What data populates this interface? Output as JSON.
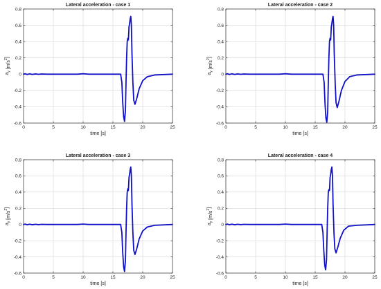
{
  "chart_data": [
    {
      "type": "line",
      "title": "Lateral acceleration - case 1",
      "xlabel": "time [s]",
      "ylabel_base": "a",
      "ylabel_sub": "y",
      "ylabel_unit": "[m/s",
      "ylabel_sup": "2",
      "ylabel_close": "]",
      "xlim": [
        0,
        25
      ],
      "ylim": [
        -0.6,
        0.8
      ],
      "xticks": [
        0,
        5,
        10,
        15,
        20,
        25
      ],
      "yticks": [
        -0.6,
        -0.4,
        -0.2,
        0,
        0.2,
        0.4,
        0.6,
        0.8
      ],
      "grid": true,
      "series_color": "#1010c8",
      "series": [
        {
          "x": [
            0,
            0.3,
            0.6,
            1.0,
            1.5,
            2.0,
            2.5,
            3.0,
            4.0,
            6.0,
            9.0,
            10.0,
            11.0,
            13.0,
            15.0,
            16.3,
            16.5,
            16.65,
            16.8,
            16.95,
            17.1,
            17.2,
            17.3,
            17.4,
            17.5,
            17.6,
            17.7,
            17.8,
            17.9,
            18.0,
            18.1,
            18.2,
            18.35,
            18.5,
            18.7,
            19.0,
            19.4,
            20.0,
            20.8,
            22.0,
            25.0
          ],
          "y": [
            0,
            0.005,
            -0.004,
            0.004,
            -0.003,
            0.003,
            -0.002,
            0.002,
            0.0,
            0.0,
            0.0,
            0.005,
            0.0,
            0.0,
            0.0,
            0.0,
            -0.1,
            -0.35,
            -0.52,
            -0.58,
            -0.45,
            -0.1,
            0.2,
            0.4,
            0.44,
            0.42,
            0.58,
            0.62,
            0.68,
            0.71,
            0.6,
            0.25,
            -0.1,
            -0.32,
            -0.37,
            -0.3,
            -0.18,
            -0.08,
            -0.03,
            -0.01,
            0.0
          ]
        }
      ]
    },
    {
      "type": "line",
      "title": "Lateral acceleration - case 2",
      "xlabel": "time [s]",
      "ylabel_base": "a",
      "ylabel_sub": "y",
      "ylabel_unit": "[m/s",
      "ylabel_sup": "2",
      "ylabel_close": "]",
      "xlim": [
        0,
        25
      ],
      "ylim": [
        -0.6,
        0.8
      ],
      "xticks": [
        0,
        5,
        10,
        15,
        20,
        25
      ],
      "yticks": [
        -0.6,
        -0.4,
        -0.2,
        0,
        0.2,
        0.4,
        0.6,
        0.8
      ],
      "grid": true,
      "series_color": "#1010c8",
      "series": [
        {
          "x": [
            0,
            0.3,
            0.6,
            1.0,
            1.5,
            2.0,
            2.5,
            3.0,
            4.0,
            6.0,
            9.0,
            10.0,
            11.0,
            13.0,
            15.0,
            16.3,
            16.5,
            16.65,
            16.8,
            16.95,
            17.1,
            17.2,
            17.3,
            17.4,
            17.5,
            17.6,
            17.7,
            17.8,
            17.9,
            18.0,
            18.1,
            18.2,
            18.35,
            18.5,
            18.7,
            19.0,
            19.4,
            20.0,
            20.8,
            22.0,
            25.0
          ],
          "y": [
            0,
            0.005,
            -0.004,
            0.004,
            -0.003,
            0.003,
            -0.002,
            0.002,
            0.0,
            0.0,
            0.0,
            0.005,
            0.0,
            0.0,
            0.0,
            0.0,
            -0.1,
            -0.36,
            -0.54,
            -0.59,
            -0.46,
            -0.1,
            0.2,
            0.4,
            0.44,
            0.42,
            0.58,
            0.62,
            0.68,
            0.71,
            0.6,
            0.25,
            -0.1,
            -0.35,
            -0.41,
            -0.33,
            -0.2,
            -0.09,
            -0.03,
            -0.01,
            0.0
          ]
        }
      ]
    },
    {
      "type": "line",
      "title": "Lateral acceleration - case 3",
      "xlabel": "time [s]",
      "ylabel_base": "a",
      "ylabel_sub": "y",
      "ylabel_unit": "[m/s",
      "ylabel_sup": "2",
      "ylabel_close": "]",
      "xlim": [
        0,
        25
      ],
      "ylim": [
        -0.6,
        0.8
      ],
      "xticks": [
        0,
        5,
        10,
        15,
        20,
        25
      ],
      "yticks": [
        -0.6,
        -0.4,
        -0.2,
        0,
        0.2,
        0.4,
        0.6,
        0.8
      ],
      "grid": true,
      "series_color": "#1010c8",
      "series": [
        {
          "x": [
            0,
            0.3,
            0.6,
            1.0,
            1.5,
            2.0,
            2.5,
            3.0,
            4.0,
            6.0,
            9.0,
            10.0,
            11.0,
            13.0,
            15.0,
            16.3,
            16.5,
            16.65,
            16.8,
            16.95,
            17.1,
            17.2,
            17.3,
            17.4,
            17.5,
            17.6,
            17.7,
            17.8,
            17.9,
            18.0,
            18.1,
            18.2,
            18.35,
            18.5,
            18.7,
            19.0,
            19.4,
            20.0,
            20.8,
            22.0,
            25.0
          ],
          "y": [
            0,
            0.005,
            -0.004,
            0.004,
            -0.003,
            0.003,
            -0.002,
            0.002,
            0.0,
            0.0,
            0.0,
            0.005,
            0.0,
            0.0,
            0.0,
            0.0,
            -0.1,
            -0.35,
            -0.52,
            -0.58,
            -0.45,
            -0.1,
            0.2,
            0.4,
            0.44,
            0.42,
            0.58,
            0.62,
            0.68,
            0.71,
            0.6,
            0.25,
            -0.1,
            -0.32,
            -0.37,
            -0.3,
            -0.18,
            -0.08,
            -0.03,
            -0.01,
            0.0
          ]
        }
      ]
    },
    {
      "type": "line",
      "title": "Lateral acceleration - case 4",
      "xlabel": "time [s]",
      "ylabel_base": "a",
      "ylabel_sub": "y",
      "ylabel_unit": "[m/s",
      "ylabel_sup": "2",
      "ylabel_close": "]",
      "xlim": [
        0,
        25
      ],
      "ylim": [
        -0.6,
        0.8
      ],
      "xticks": [
        0,
        5,
        10,
        15,
        20,
        25
      ],
      "yticks": [
        -0.6,
        -0.4,
        -0.2,
        0,
        0.2,
        0.4,
        0.6,
        0.8
      ],
      "grid": true,
      "series_color": "#1010c8",
      "series": [
        {
          "x": [
            0,
            0.3,
            0.6,
            1.0,
            1.5,
            2.0,
            2.5,
            3.0,
            4.0,
            6.0,
            9.0,
            10.0,
            11.0,
            13.0,
            15.0,
            16.1,
            16.3,
            16.45,
            16.6,
            16.75,
            16.9,
            17.0,
            17.1,
            17.2,
            17.3,
            17.4,
            17.5,
            17.6,
            17.7,
            17.8,
            17.9,
            18.0,
            18.15,
            18.3,
            18.5,
            18.8,
            19.2,
            19.8,
            20.6,
            22.0,
            25.0
          ],
          "y": [
            0,
            0.005,
            -0.004,
            0.004,
            -0.003,
            0.003,
            -0.002,
            0.002,
            0.0,
            0.0,
            0.0,
            0.005,
            0.0,
            0.0,
            0.0,
            0.0,
            -0.1,
            -0.33,
            -0.5,
            -0.56,
            -0.44,
            -0.1,
            0.2,
            0.4,
            0.43,
            0.42,
            0.58,
            0.62,
            0.68,
            0.71,
            0.6,
            0.25,
            -0.1,
            -0.3,
            -0.35,
            -0.28,
            -0.17,
            -0.07,
            -0.02,
            -0.01,
            0.0
          ]
        }
      ]
    }
  ]
}
